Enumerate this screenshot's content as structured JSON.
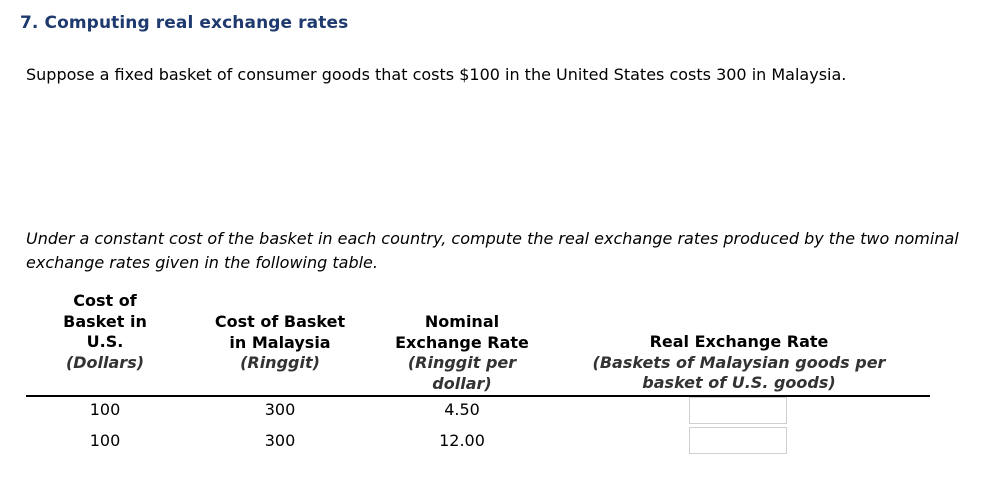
{
  "question": {
    "title": "7. Computing real exchange rates",
    "intro": "Suppose a fixed basket of consumer goods that costs $100 in the United States costs 300 in Malaysia.",
    "instruction": "Under a constant cost of the basket in each country, compute the real exchange rates produced by the two nominal exchange rates given in the following table."
  },
  "table": {
    "headers": {
      "us_cost": {
        "line1": "Cost of",
        "line2": "Basket in",
        "line3": "U.S.",
        "unit": "(Dollars)"
      },
      "my_cost": {
        "line1": "Cost of Basket",
        "line2": "in Malaysia",
        "unit": "(Ringgit)"
      },
      "nominal": {
        "line1": "Nominal",
        "line2": "Exchange Rate",
        "unit1": "(Ringgit per",
        "unit2": "dollar)"
      },
      "real": {
        "line1": "Real Exchange Rate",
        "unit1": "(Baskets of Malaysian goods per",
        "unit2": "basket of U.S. goods)"
      }
    },
    "rows": [
      {
        "us_cost": "100",
        "my_cost": "300",
        "nominal": "4.50",
        "real": ""
      },
      {
        "us_cost": "100",
        "my_cost": "300",
        "nominal": "12.00",
        "real": ""
      }
    ]
  }
}
